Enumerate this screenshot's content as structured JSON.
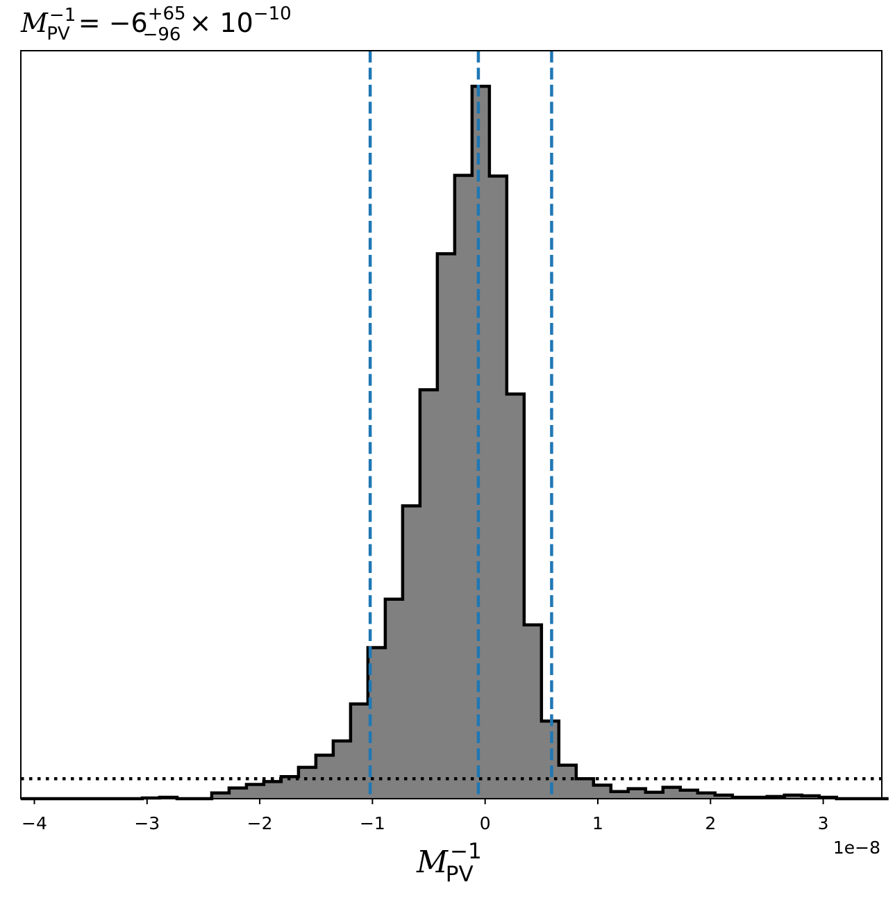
{
  "chart_data": {
    "type": "histogram",
    "title": {
      "symbol": "M",
      "sub": "PV",
      "sup": "−1",
      "eq": " = −6",
      "err_plus": "+65",
      "err_minus": "−96",
      "times": " × 10",
      "exp": "−10"
    },
    "xlabel": {
      "symbol": "M",
      "sub": "PV",
      "sup": "−1"
    },
    "x_offset_label": "1e−8",
    "xlim": [
      -4.12,
      3.52
    ],
    "ylim": [
      0,
      1.05
    ],
    "x_ticks": [
      -4,
      -3,
      -2,
      -1,
      0,
      1,
      2,
      3
    ],
    "x_tick_labels": [
      "−4",
      "−3",
      "−2",
      "−1",
      "0",
      "1",
      "2",
      "3"
    ],
    "y_ticks_shown": false,
    "bin_edges": [
      -4.12,
      -3.966,
      -3.812,
      -3.658,
      -3.504,
      -3.35,
      -3.196,
      -3.042,
      -2.888,
      -2.734,
      -2.58,
      -2.426,
      -2.272,
      -2.118,
      -1.964,
      -1.81,
      -1.656,
      -1.502,
      -1.348,
      -1.194,
      -1.04,
      -0.886,
      -0.732,
      -0.578,
      -0.424,
      -0.27,
      -0.116,
      0.038,
      0.192,
      0.346,
      0.5,
      0.654,
      0.808,
      0.962,
      1.116,
      1.27,
      1.424,
      1.578,
      1.732,
      1.886,
      2.04,
      2.194,
      2.348,
      2.502,
      2.656,
      2.81,
      2.964,
      3.118,
      3.272,
      3.426,
      3.58
    ],
    "counts": [
      0,
      0,
      0,
      0,
      0,
      0,
      0,
      0.001,
      0.002,
      0,
      0,
      0.008,
      0.015,
      0.02,
      0.024,
      0.031,
      0.044,
      0.061,
      0.081,
      0.133,
      0.212,
      0.28,
      0.411,
      0.574,
      0.765,
      0.875,
      1.0,
      0.874,
      0.568,
      0.244,
      0.109,
      0.047,
      0.028,
      0.019,
      0.01,
      0.014,
      0.009,
      0.016,
      0.012,
      0.008,
      0.005,
      0.002,
      0.002,
      0.003,
      0.005,
      0.004,
      0.002,
      0,
      0,
      0
    ],
    "vlines": [
      -1.02,
      -0.06,
      0.59
    ],
    "vline_color": "#1f77b4",
    "hline": 0.028,
    "hline_color": "#000000",
    "fill_color": "#808080",
    "edge_color": "#000000"
  }
}
